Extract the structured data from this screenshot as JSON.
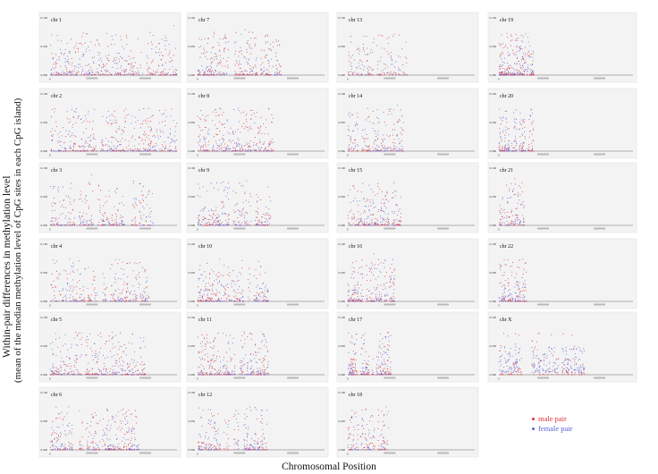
{
  "chart_data": {
    "type": "scatter",
    "ylabel_line1": "Within-pair differences in methylation level",
    "ylabel_line2": "(mean of the median methylation level of CpG sites in each CpG island)",
    "xlabel": "Chromosomal Position",
    "y_ticks": [
      "0.100",
      "0.050",
      "0.000"
    ],
    "x_tick_first": "0",
    "ylim": [
      0,
      0.1
    ],
    "grid": false,
    "legend_position": "bottom-right",
    "series": [
      {
        "name": "male pair",
        "color": "#e0303a"
      },
      {
        "name": "female pair",
        "color": "#5a62d8"
      }
    ],
    "panels": [
      {
        "label": "chr 1",
        "extent": 1.0,
        "density": 1.0
      },
      {
        "label": "chr 2",
        "extent": 1.0,
        "density": 1.0
      },
      {
        "label": "chr 3",
        "extent": 0.82,
        "density": 0.9
      },
      {
        "label": "chr 4",
        "extent": 0.78,
        "density": 0.85
      },
      {
        "label": "chr 5",
        "extent": 0.75,
        "density": 0.95
      },
      {
        "label": "chr 6",
        "extent": 0.7,
        "density": 1.0
      },
      {
        "label": "chr 7",
        "extent": 0.66,
        "density": 1.0
      },
      {
        "label": "chr 8",
        "extent": 0.6,
        "density": 0.9
      },
      {
        "label": "chr 9",
        "extent": 0.58,
        "density": 0.85
      },
      {
        "label": "chr 10",
        "extent": 0.56,
        "density": 0.9
      },
      {
        "label": "chr 11",
        "extent": 0.56,
        "density": 1.0
      },
      {
        "label": "chr 12",
        "extent": 0.55,
        "density": 0.9
      },
      {
        "label": "chr 13",
        "extent": 0.47,
        "density": 0.55
      },
      {
        "label": "chr 14",
        "extent": 0.44,
        "density": 0.7
      },
      {
        "label": "chr 15",
        "extent": 0.42,
        "density": 0.75
      },
      {
        "label": "chr 16",
        "extent": 0.37,
        "density": 0.9
      },
      {
        "label": "chr 17",
        "extent": 0.34,
        "density": 1.0
      },
      {
        "label": "chr 18",
        "extent": 0.32,
        "density": 0.6
      },
      {
        "label": "chr 19",
        "extent": 0.26,
        "density": 1.0
      },
      {
        "label": "chr 20",
        "extent": 0.26,
        "density": 0.85
      },
      {
        "label": "chr 21",
        "extent": 0.19,
        "density": 0.5
      },
      {
        "label": "chr 22",
        "extent": 0.21,
        "density": 0.7
      },
      {
        "label": "chr X",
        "extent": 0.64,
        "density": 1.0,
        "female_heavy": true
      }
    ]
  }
}
